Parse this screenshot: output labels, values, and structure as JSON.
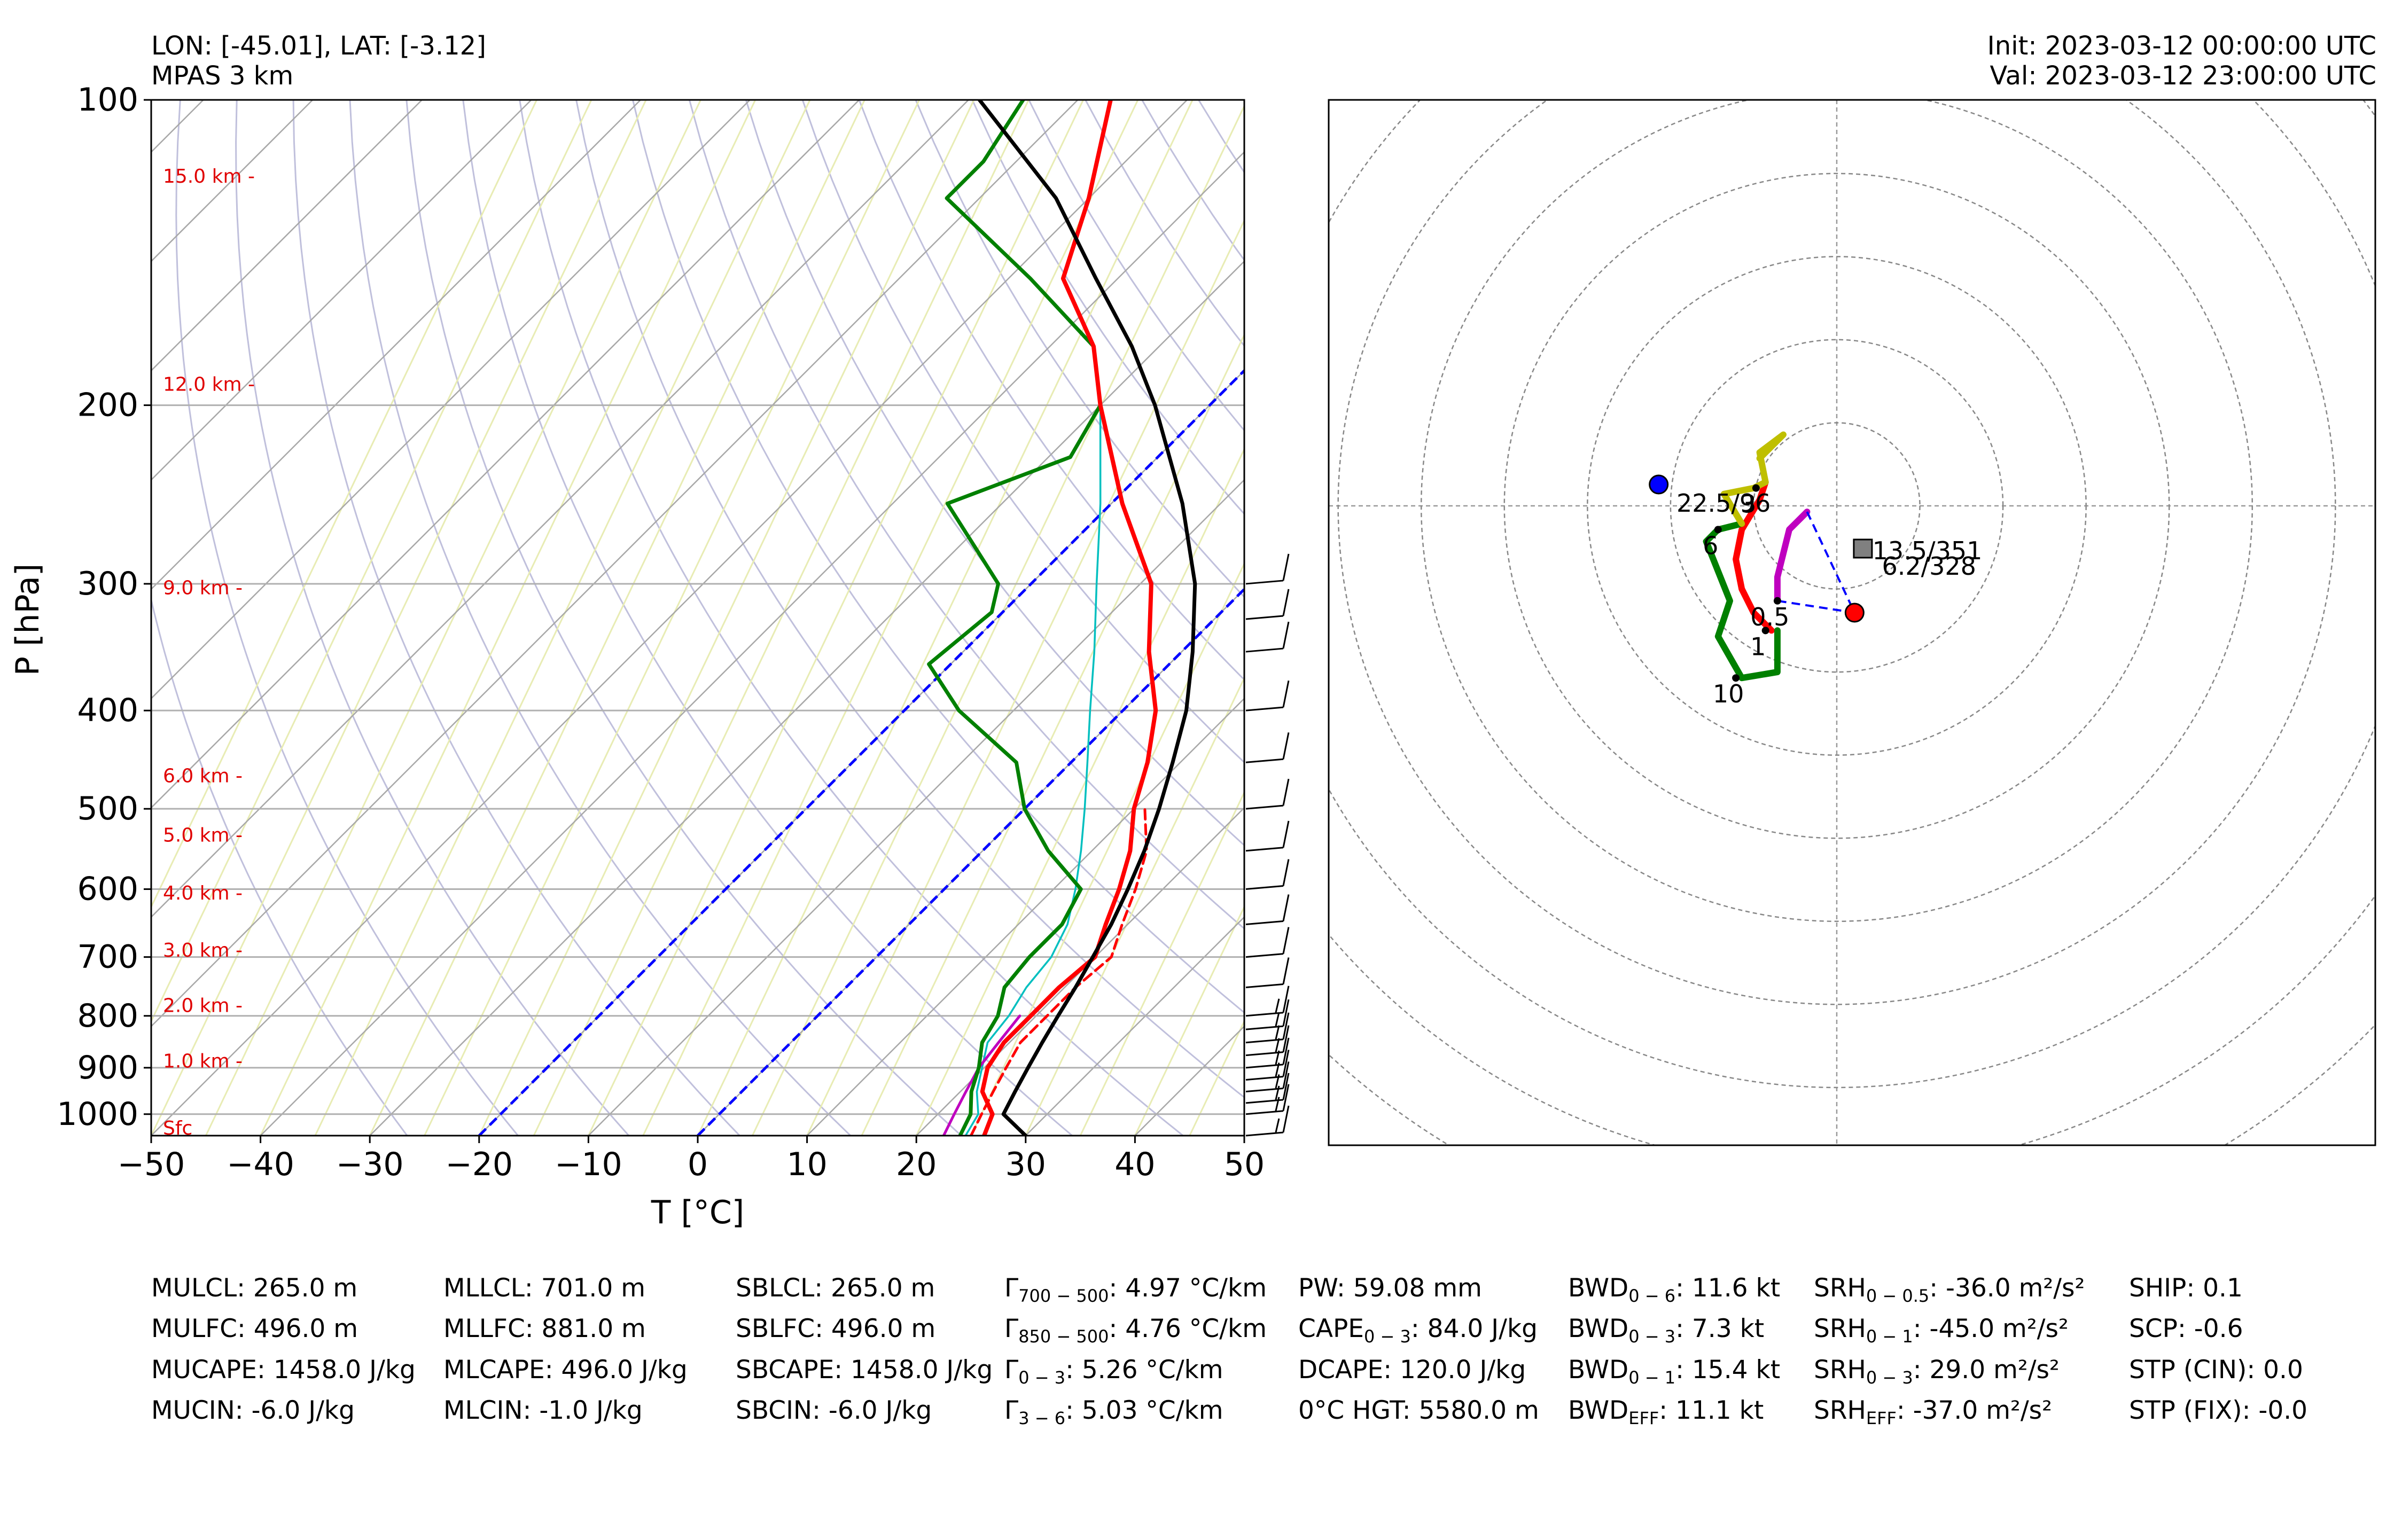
{
  "header": {
    "location": "LON: [-45.01], LAT: [-3.12]",
    "model": "MPAS 3 km",
    "init": "Init: 2023-03-12 00:00:00 UTC",
    "valid": "Val: 2023-03-12 23:00:00 UTC"
  },
  "chart_data": [
    {
      "type": "line",
      "xlabel": "T [°C]",
      "ylabel": "P [hPa]",
      "xlim": [
        -50,
        50
      ],
      "ylim": [
        1050,
        100
      ],
      "y_scale": "log",
      "x_ticks": [
        "−50",
        "−40",
        "−30",
        "−20",
        "−10",
        "0",
        "10",
        "20",
        "30",
        "40",
        "50"
      ],
      "y_ticks": [
        "100",
        "200",
        "300",
        "400",
        "500",
        "600",
        "700",
        "800",
        "900",
        "1000"
      ],
      "grid": true,
      "colors": {
        "temperature": "#ff0000",
        "dewpoint": "#008000",
        "virtual_temperature": "#ff0000",
        "wetbulb": "#00bfbf",
        "parcel": "#000000",
        "downdraft": "#bf00bf",
        "isotherm_0_-20": "#0000ff"
      },
      "height_labels": [
        {
          "p": 1050,
          "label": "Sfc"
        },
        {
          "p": 902,
          "label": "1.0 km -"
        },
        {
          "p": 795,
          "label": "2.0 km -"
        },
        {
          "p": 701,
          "label": "3.0 km -"
        },
        {
          "p": 616,
          "label": "4.0 km -"
        },
        {
          "p": 540,
          "label": "5.0 km -"
        },
        {
          "p": 472,
          "label": "6.0 km -"
        },
        {
          "p": 308,
          "label": "9.0 km -"
        },
        {
          "p": 194,
          "label": "12.0 km -"
        },
        {
          "p": 121,
          "label": "15.0 km -"
        }
      ],
      "series": [
        {
          "key": "temperature",
          "style": "solid",
          "points": [
            [
              1050,
              26.2
            ],
            [
              1000,
              25.0
            ],
            [
              950,
              22.0
            ],
            [
              900,
              20.3
            ],
            [
              850,
              19.5
            ],
            [
              800,
              19.5
            ],
            [
              750,
              19.5
            ],
            [
              700,
              20.0
            ],
            [
              650,
              18.0
            ],
            [
              600,
              16.0
            ],
            [
              550,
              13.5
            ],
            [
              500,
              10.0
            ],
            [
              450,
              7.0
            ],
            [
              400,
              3.0
            ],
            [
              350,
              -3.0
            ],
            [
              300,
              -9.0
            ],
            [
              250,
              -19.0
            ],
            [
              200,
              -30.0
            ],
            [
              175,
              -36.0
            ],
            [
              150,
              -45.0
            ],
            [
              125,
              -50.0
            ],
            [
              100,
              -57.0
            ]
          ]
        },
        {
          "key": "virtual_temperature",
          "style": "dashed",
          "points": [
            [
              1050,
              25.0
            ],
            [
              1000,
              24.0
            ],
            [
              950,
              23.0
            ],
            [
              900,
              22.0
            ],
            [
              850,
              21.0
            ],
            [
              800,
              21.0
            ],
            [
              750,
              21.0
            ],
            [
              700,
              21.5
            ],
            [
              650,
              19.5
            ],
            [
              600,
              17.5
            ],
            [
              550,
              15.0
            ],
            [
              500,
              11.0
            ]
          ]
        },
        {
          "key": "dewpoint",
          "style": "solid",
          "points": [
            [
              1050,
              24.0
            ],
            [
              1000,
              23.0
            ],
            [
              950,
              21.0
            ],
            [
              900,
              19.5
            ],
            [
              850,
              17.5
            ],
            [
              800,
              16.5
            ],
            [
              750,
              14.5
            ],
            [
              700,
              14.0
            ],
            [
              650,
              14.0
            ],
            [
              600,
              12.5
            ],
            [
              550,
              6.0
            ],
            [
              500,
              0.0
            ],
            [
              450,
              -5.0
            ],
            [
              400,
              -15.0
            ],
            [
              360,
              -22.0
            ],
            [
              320,
              -21.0
            ],
            [
              300,
              -23.0
            ],
            [
              250,
              -35.0
            ],
            [
              225,
              -28.0
            ],
            [
              200,
              -30.0
            ],
            [
              175,
              -36.0
            ],
            [
              150,
              -48.0
            ],
            [
              125,
              -63.0
            ],
            [
              115,
              -63.0
            ],
            [
              100,
              -65.0
            ]
          ]
        },
        {
          "key": "wetbulb",
          "style": "solid",
          "points": [
            [
              1050,
              24.5
            ],
            [
              1000,
              23.7
            ],
            [
              950,
              21.5
            ],
            [
              900,
              19.8
            ],
            [
              850,
              18.0
            ],
            [
              800,
              17.5
            ],
            [
              750,
              16.5
            ],
            [
              700,
              16.0
            ],
            [
              650,
              14.5
            ],
            [
              600,
              12.0
            ],
            [
              550,
              9.0
            ],
            [
              500,
              5.5
            ],
            [
              450,
              1.5
            ],
            [
              400,
              -3.0
            ],
            [
              350,
              -8.0
            ],
            [
              300,
              -14.0
            ],
            [
              250,
              -21.0
            ],
            [
              200,
              -30.0
            ],
            [
              175,
              -36.0
            ],
            [
              150,
              -45.0
            ],
            [
              125,
              -50.0
            ],
            [
              100,
              -57.0
            ]
          ]
        },
        {
          "key": "parcel",
          "style": "solid",
          "points": [
            [
              1050,
              30.0
            ],
            [
              1000,
              26.0
            ],
            [
              950,
              25.0
            ],
            [
              900,
              24.0
            ],
            [
              850,
              23.0
            ],
            [
              800,
              22.0
            ],
            [
              750,
              21.0
            ],
            [
              700,
              19.8
            ],
            [
              650,
              18.5
            ],
            [
              600,
              16.8
            ],
            [
              550,
              14.8
            ],
            [
              500,
              12.3
            ],
            [
              450,
              9.3
            ],
            [
              400,
              5.8
            ],
            [
              350,
              1.0
            ],
            [
              300,
              -5.0
            ],
            [
              250,
              -13.5
            ],
            [
              200,
              -25.0
            ],
            [
              175,
              -32.5
            ],
            [
              150,
              -42.0
            ],
            [
              125,
              -53.0
            ],
            [
              100,
              -69.0
            ]
          ]
        },
        {
          "key": "downdraft",
          "style": "solid",
          "points": [
            [
              1050,
              22.5
            ],
            [
              1000,
              21.5
            ],
            [
              950,
              20.5
            ],
            [
              900,
              19.5
            ],
            [
              850,
              19.0
            ],
            [
              800,
              18.5
            ]
          ]
        }
      ],
      "isotherms_highlight": [
        0,
        -20
      ]
    },
    {
      "type": "scatter",
      "title": "",
      "xlim": [
        -40,
        40
      ],
      "ylim": [
        -40,
        40
      ],
      "ring_spacing": 10,
      "hodograph_segments": [
        {
          "color": "#ff0000",
          "points": [
            [
              -5.5,
              -10.5
            ],
            [
              -7.0,
              -9.0
            ],
            [
              -8.0,
              -7.0
            ],
            [
              -8.5,
              -4.5
            ],
            [
              -8.0,
              -2.0
            ],
            [
              -6.5,
              0.5
            ],
            [
              -6.0,
              2.0
            ]
          ]
        },
        {
          "color": "#bf00bf",
          "points": [
            [
              -5.0,
              -8.0
            ],
            [
              -5.0,
              -6.0
            ],
            [
              -4.0,
              -2.0
            ],
            [
              -3.0,
              -1.0
            ],
            [
              -2.5,
              -0.5
            ]
          ]
        },
        {
          "color": "#008000",
          "points": [
            [
              -5.0,
              -10.5
            ],
            [
              -5.0,
              -14.0
            ],
            [
              -8.0,
              -14.5
            ],
            [
              -10.0,
              -11.0
            ],
            [
              -9.0,
              -8.0
            ],
            [
              -11.0,
              -3.0
            ],
            [
              -10.0,
              -2.0
            ],
            [
              -8.0,
              -1.5
            ]
          ]
        },
        {
          "color": "#bfbf00",
          "points": [
            [
              -8.0,
              -1.5
            ],
            [
              -9.5,
              1.0
            ],
            [
              -7.0,
              1.5
            ],
            [
              -6.0,
              2.0
            ],
            [
              -6.5,
              4.5
            ],
            [
              -4.5,
              6.0
            ],
            [
              -6.5,
              4.0
            ]
          ]
        }
      ],
      "markers": [
        {
          "label": "0.5",
          "u": -5.0,
          "v": -8.0
        },
        {
          "label": "1",
          "u": -6.0,
          "v": -10.5
        },
        {
          "label": "10",
          "u": -8.5,
          "v": -14.5
        },
        {
          "label": "3",
          "u": -6.8,
          "v": 1.5
        },
        {
          "label": "6",
          "u": -10.0,
          "v": -2.0
        }
      ],
      "storm_motion": [
        {
          "kind": "right-mover",
          "u": 1.5,
          "v": -9.0,
          "color": "#ff0000"
        },
        {
          "kind": "left-mover",
          "u": -15.0,
          "v": 1.8,
          "color": "#0000ff"
        },
        {
          "kind": "mean-wind",
          "u": 2.2,
          "v": -3.6,
          "color": "#808080"
        }
      ],
      "annotations": [
        {
          "text": "22.5/96",
          "u": -13.5,
          "v": -0.5
        },
        {
          "text": "13.5/351",
          "u": 3.0,
          "v": -4.5
        },
        {
          "text": "6.2/328",
          "u": 3.8,
          "v": -5.8
        }
      ]
    }
  ],
  "barbs": [
    {
      "p": 1050,
      "speed": 15
    },
    {
      "p": 1000,
      "speed": 15
    },
    {
      "p": 975,
      "speed": 15
    },
    {
      "p": 950,
      "speed": 15
    },
    {
      "p": 925,
      "speed": 15
    },
    {
      "p": 900,
      "speed": 15
    },
    {
      "p": 875,
      "speed": 15
    },
    {
      "p": 850,
      "speed": 15
    },
    {
      "p": 825,
      "speed": 15
    },
    {
      "p": 800,
      "speed": 15
    },
    {
      "p": 750,
      "speed": 10
    },
    {
      "p": 700,
      "speed": 10
    },
    {
      "p": 650,
      "speed": 10
    },
    {
      "p": 600,
      "speed": 10
    },
    {
      "p": 550,
      "speed": 10
    },
    {
      "p": 500,
      "speed": 10
    },
    {
      "p": 450,
      "speed": 10
    },
    {
      "p": 400,
      "speed": 10
    },
    {
      "p": 350,
      "speed": 10
    },
    {
      "p": 325,
      "speed": 10
    },
    {
      "p": 300,
      "speed": 10
    }
  ],
  "params": [
    {
      "col": 0,
      "row": 0,
      "label": "MULCL: 265.0 m"
    },
    {
      "col": 0,
      "row": 1,
      "label": "MULFC: 496.0 m"
    },
    {
      "col": 0,
      "row": 2,
      "label": "MUCAPE: 1458.0 J/kg"
    },
    {
      "col": 0,
      "row": 3,
      "label": "MUCIN: -6.0 J/kg"
    },
    {
      "col": 1,
      "row": 0,
      "label": "MLLCL: 701.0 m"
    },
    {
      "col": 1,
      "row": 1,
      "label": "MLLFC: 881.0 m"
    },
    {
      "col": 1,
      "row": 2,
      "label": "MLCAPE: 496.0 J/kg"
    },
    {
      "col": 1,
      "row": 3,
      "label": "MLCIN: -1.0 J/kg"
    },
    {
      "col": 2,
      "row": 0,
      "label": "SBLCL: 265.0 m"
    },
    {
      "col": 2,
      "row": 1,
      "label": "SBLFC: 496.0 m"
    },
    {
      "col": 2,
      "row": 2,
      "label": "SBCAPE: 1458.0 J/kg"
    },
    {
      "col": 2,
      "row": 3,
      "label": "SBCIN: -6.0 J/kg"
    },
    {
      "col": 3,
      "row": 0,
      "label": "Γ",
      "sub": "700 − 500",
      "value": ": 4.97 °C/km"
    },
    {
      "col": 3,
      "row": 1,
      "label": "Γ",
      "sub": "850 − 500",
      "value": ": 4.76 °C/km"
    },
    {
      "col": 3,
      "row": 2,
      "label": "Γ",
      "sub": "0 − 3",
      "value": ": 5.26 °C/km"
    },
    {
      "col": 3,
      "row": 3,
      "label": "Γ",
      "sub": "3 − 6",
      "value": ": 5.03 °C/km"
    },
    {
      "col": 4,
      "row": 0,
      "label": "PW: 59.08 mm"
    },
    {
      "col": 4,
      "row": 1,
      "label": "CAPE",
      "sub": "0 − 3",
      "value": ": 84.0 J/kg"
    },
    {
      "col": 4,
      "row": 2,
      "label": "DCAPE: 120.0 J/kg"
    },
    {
      "col": 4,
      "row": 3,
      "label": "0°C HGT: 5580.0 m"
    },
    {
      "col": 5,
      "row": 0,
      "label": "BWD",
      "sub": "0 − 6",
      "value": ": 11.6 kt"
    },
    {
      "col": 5,
      "row": 1,
      "label": "BWD",
      "sub": "0 − 3",
      "value": ": 7.3 kt"
    },
    {
      "col": 5,
      "row": 2,
      "label": "BWD",
      "sub": "0 − 1",
      "value": ": 15.4 kt"
    },
    {
      "col": 5,
      "row": 3,
      "label": "BWD",
      "sub": "EFF",
      "value": ": 11.1 kt"
    },
    {
      "col": 6,
      "row": 0,
      "label": "SRH",
      "sub": "0 − 0.5",
      "value": ": -36.0 m²/s²"
    },
    {
      "col": 6,
      "row": 1,
      "label": "SRH",
      "sub": "0 − 1",
      "value": ": -45.0 m²/s²"
    },
    {
      "col": 6,
      "row": 2,
      "label": "SRH",
      "sub": "0 − 3",
      "value": ": 29.0 m²/s²"
    },
    {
      "col": 6,
      "row": 3,
      "label": "SRH",
      "sub": "EFF",
      "value": ": -37.0 m²/s²"
    },
    {
      "col": 7,
      "row": 0,
      "label": "SHIP: 0.1"
    },
    {
      "col": 7,
      "row": 1,
      "label": "SCP: -0.6"
    },
    {
      "col": 7,
      "row": 2,
      "label": "STP (CIN): 0.0"
    },
    {
      "col": 7,
      "row": 3,
      "label": "STP (FIX): -0.0"
    }
  ]
}
